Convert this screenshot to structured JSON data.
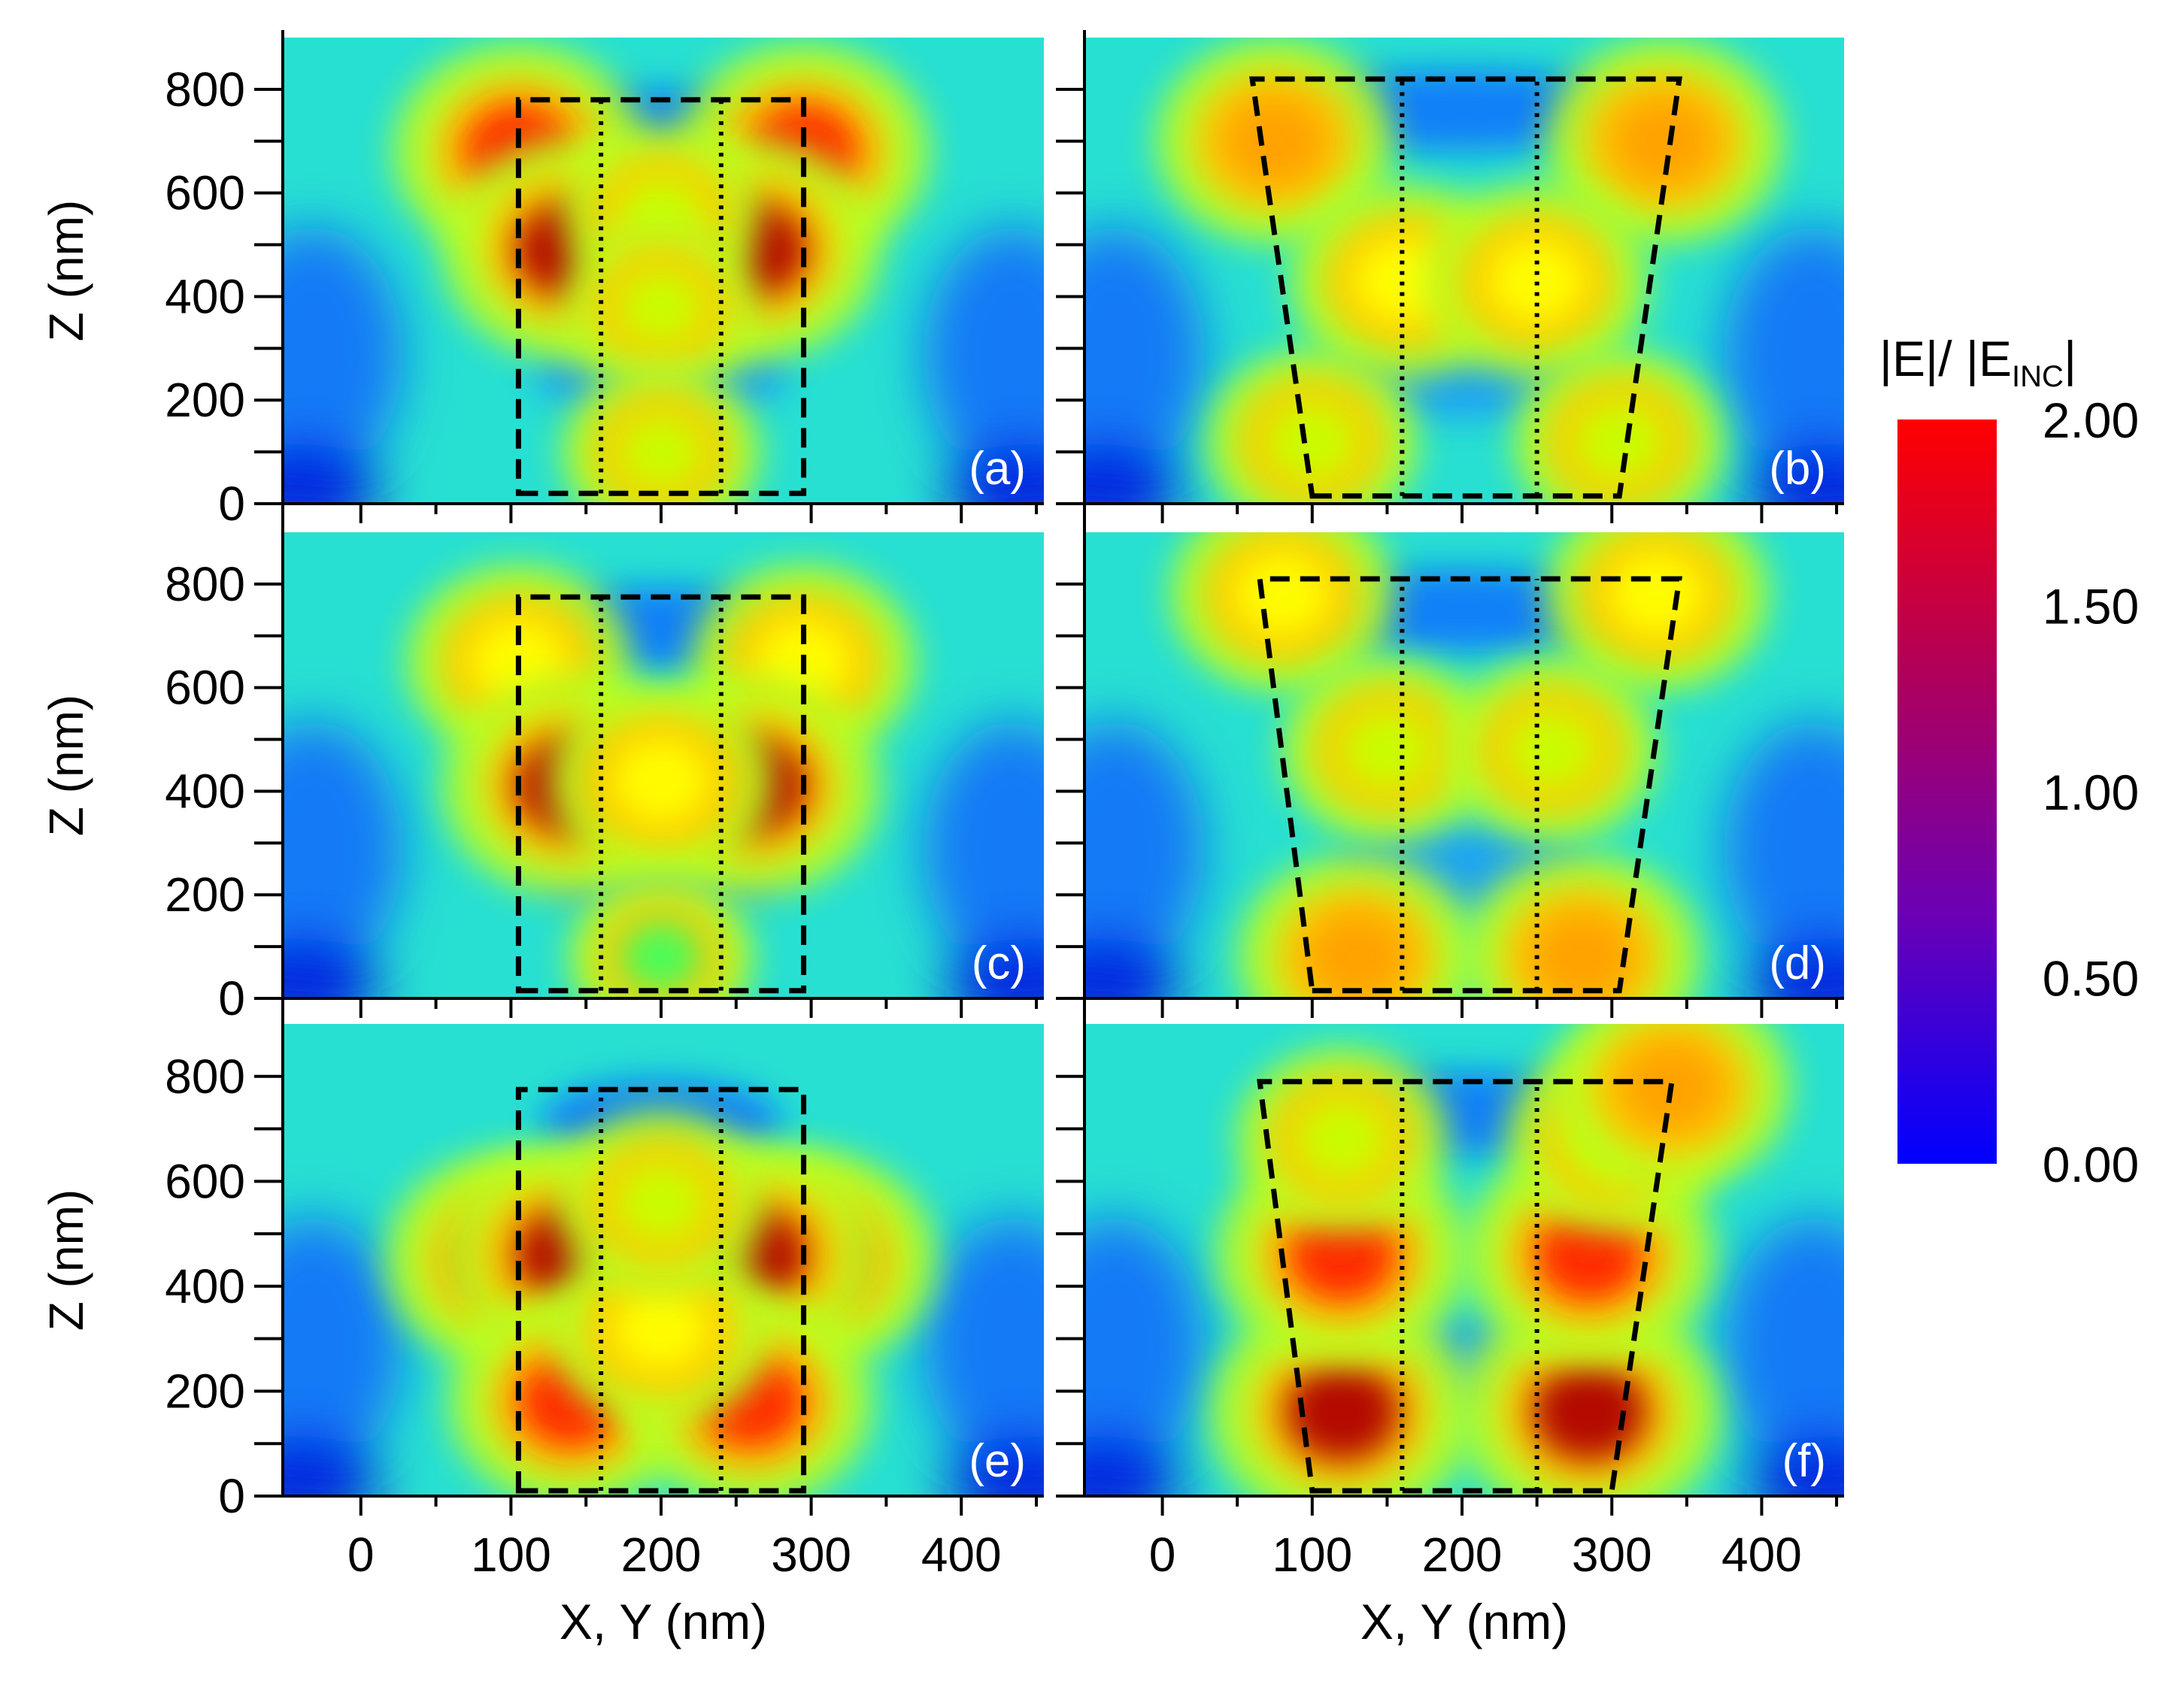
{
  "chart_data": {
    "type": "heatmap",
    "description_free": true,
    "ylabel": "Z (nm)",
    "xlabel": "X, Y (nm)",
    "xlim": [
      -52,
      455
    ],
    "ylim": [
      0,
      900
    ],
    "x_ticks": [
      0,
      100,
      200,
      300,
      400
    ],
    "x_tick_labels": [
      "0",
      "100",
      "200",
      "300",
      "400"
    ],
    "y_ticks": [
      0,
      200,
      400,
      600,
      800
    ],
    "y_tick_labels": [
      "0",
      "200",
      "400",
      "600",
      "800"
    ],
    "colorbar": {
      "title": "|E|/ |E",
      "title_sub": "INC",
      "title_end": "|",
      "range": [
        0,
        2
      ],
      "ticks": [
        2.0,
        1.5,
        1.0,
        0.5,
        0.0
      ],
      "tick_labels": [
        "2.00",
        "1.50",
        "1.00",
        "0.50",
        "0.00"
      ],
      "colors": [
        "#0000ff",
        "#6a00b6",
        "#b0005a",
        "#ff0000"
      ]
    },
    "field_colors": [
      "#0000ff",
      "#0050ff",
      "#00c8ff",
      "#00ffcc",
      "#40ff60",
      "#c8ff00",
      "#ffff00",
      "#ffa000",
      "#ff2000",
      "#b00000"
    ],
    "panels": [
      {
        "label": "(a)",
        "outline_x": [
          [
            105,
            20
          ],
          [
            295,
            20
          ],
          [
            295,
            780
          ],
          [
            105,
            780
          ]
        ],
        "inner_lines_x": [
          160,
          240
        ],
        "hotspots": [
          {
            "x": 105,
            "z": 680,
            "v": 1.8
          },
          {
            "x": 295,
            "z": 680,
            "v": 1.8
          },
          {
            "x": 140,
            "z": 490,
            "v": 1.9
          },
          {
            "x": 260,
            "z": 490,
            "v": 1.9
          },
          {
            "x": 200,
            "z": 560,
            "v": 1.0
          },
          {
            "x": 200,
            "z": 380,
            "v": 1.0
          },
          {
            "x": 200,
            "z": 100,
            "v": 1.0
          }
        ]
      },
      {
        "label": "(b)",
        "outline_x": [
          [
            100,
            15
          ],
          [
            305,
            15
          ],
          [
            345,
            820
          ],
          [
            60,
            820
          ]
        ],
        "inner_lines_x": [
          160,
          250
        ],
        "hotspots": [
          {
            "x": 75,
            "z": 700,
            "v": 1.6
          },
          {
            "x": 335,
            "z": 700,
            "v": 1.6
          },
          {
            "x": 160,
            "z": 430,
            "v": 1.4
          },
          {
            "x": 250,
            "z": 430,
            "v": 1.4
          },
          {
            "x": 100,
            "z": 120,
            "v": 1.2
          },
          {
            "x": 305,
            "z": 120,
            "v": 1.2
          }
        ]
      },
      {
        "label": "(c)",
        "outline_x": [
          [
            105,
            15
          ],
          [
            295,
            15
          ],
          [
            295,
            775
          ],
          [
            105,
            775
          ]
        ],
        "inner_lines_x": [
          160,
          240
        ],
        "hotspots": [
          {
            "x": 105,
            "z": 650,
            "v": 1.4
          },
          {
            "x": 295,
            "z": 650,
            "v": 1.4
          },
          {
            "x": 140,
            "z": 410,
            "v": 1.9
          },
          {
            "x": 260,
            "z": 410,
            "v": 1.9
          },
          {
            "x": 200,
            "z": 420,
            "v": 1.4
          },
          {
            "x": 200,
            "z": 80,
            "v": 0.8
          }
        ]
      },
      {
        "label": "(d)",
        "outline_x": [
          [
            100,
            15
          ],
          [
            305,
            15
          ],
          [
            345,
            810
          ],
          [
            65,
            810
          ]
        ],
        "inner_lines_x": [
          160,
          250
        ],
        "hotspots": [
          {
            "x": 80,
            "z": 780,
            "v": 1.4
          },
          {
            "x": 330,
            "z": 780,
            "v": 1.4
          },
          {
            "x": 150,
            "z": 480,
            "v": 1.2
          },
          {
            "x": 260,
            "z": 480,
            "v": 1.2
          },
          {
            "x": 130,
            "z": 80,
            "v": 1.6
          },
          {
            "x": 280,
            "z": 80,
            "v": 1.6
          }
        ]
      },
      {
        "label": "(e)",
        "outline_x": [
          [
            105,
            10
          ],
          [
            295,
            10
          ],
          [
            295,
            775
          ],
          [
            105,
            775
          ]
        ],
        "inner_lines_x": [
          160,
          240
        ],
        "hotspots": [
          {
            "x": 100,
            "z": 450,
            "v": 1.8
          },
          {
            "x": 300,
            "z": 450,
            "v": 1.8
          },
          {
            "x": 140,
            "z": 460,
            "v": 1.9
          },
          {
            "x": 260,
            "z": 460,
            "v": 1.9
          },
          {
            "x": 140,
            "z": 180,
            "v": 1.7
          },
          {
            "x": 260,
            "z": 180,
            "v": 1.7
          },
          {
            "x": 200,
            "z": 320,
            "v": 1.4
          },
          {
            "x": 200,
            "z": 560,
            "v": 1.2
          }
        ]
      },
      {
        "label": "(f)",
        "outline_x": [
          [
            100,
            10
          ],
          [
            300,
            10
          ],
          [
            340,
            790
          ],
          [
            65,
            790
          ]
        ],
        "inner_lines_x": [
          160,
          250
        ],
        "hotspots": [
          {
            "x": 120,
            "z": 160,
            "v": 2.0
          },
          {
            "x": 285,
            "z": 160,
            "v": 2.0
          },
          {
            "x": 120,
            "z": 460,
            "v": 1.8
          },
          {
            "x": 285,
            "z": 460,
            "v": 1.8
          },
          {
            "x": 120,
            "z": 680,
            "v": 1.2
          },
          {
            "x": 300,
            "z": 680,
            "v": 1.2
          },
          {
            "x": 340,
            "z": 780,
            "v": 1.6
          }
        ]
      }
    ]
  }
}
